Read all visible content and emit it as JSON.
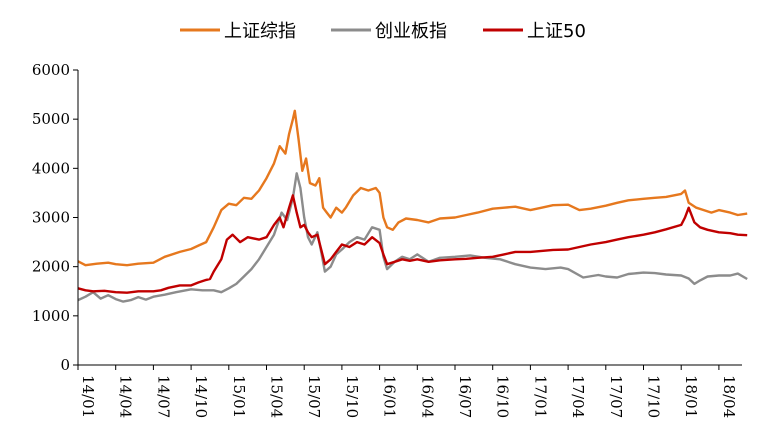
{
  "chart_data": {
    "type": "line",
    "title": "",
    "xlabel": "",
    "ylabel": "",
    "ylim": [
      0,
      6000
    ],
    "yticks": [
      0,
      1000,
      2000,
      3000,
      4000,
      5000,
      6000
    ],
    "x": [
      "14/01",
      "14/04",
      "14/07",
      "14/10",
      "15/01",
      "15/04",
      "15/07",
      "15/10",
      "16/01",
      "16/04",
      "16/07",
      "16/10",
      "17/01",
      "17/04",
      "17/07",
      "17/10",
      "18/01",
      "18/04"
    ],
    "legend_position": "top",
    "series": [
      {
        "name": "上证综指",
        "color": "#E6781E",
        "points": [
          [
            0,
            2110
          ],
          [
            0.2,
            2030
          ],
          [
            0.5,
            2060
          ],
          [
            0.8,
            2080
          ],
          [
            1,
            2050
          ],
          [
            1.3,
            2030
          ],
          [
            1.6,
            2060
          ],
          [
            2,
            2080
          ],
          [
            2.3,
            2200
          ],
          [
            2.7,
            2300
          ],
          [
            3,
            2360
          ],
          [
            3.2,
            2430
          ],
          [
            3.4,
            2500
          ],
          [
            3.6,
            2800
          ],
          [
            3.8,
            3150
          ],
          [
            4,
            3280
          ],
          [
            4.2,
            3250
          ],
          [
            4.4,
            3400
          ],
          [
            4.6,
            3380
          ],
          [
            4.8,
            3550
          ],
          [
            5,
            3800
          ],
          [
            5.2,
            4100
          ],
          [
            5.35,
            4450
          ],
          [
            5.5,
            4300
          ],
          [
            5.6,
            4700
          ],
          [
            5.7,
            5000
          ],
          [
            5.75,
            5170
          ],
          [
            5.85,
            4600
          ],
          [
            5.95,
            3950
          ],
          [
            6.05,
            4200
          ],
          [
            6.15,
            3700
          ],
          [
            6.3,
            3650
          ],
          [
            6.4,
            3800
          ],
          [
            6.5,
            3200
          ],
          [
            6.6,
            3100
          ],
          [
            6.7,
            3000
          ],
          [
            6.85,
            3200
          ],
          [
            7.0,
            3100
          ],
          [
            7.1,
            3200
          ],
          [
            7.3,
            3450
          ],
          [
            7.5,
            3600
          ],
          [
            7.7,
            3550
          ],
          [
            7.9,
            3600
          ],
          [
            8.0,
            3500
          ],
          [
            8.1,
            3000
          ],
          [
            8.2,
            2800
          ],
          [
            8.35,
            2750
          ],
          [
            8.5,
            2900
          ],
          [
            8.7,
            2980
          ],
          [
            9,
            2950
          ],
          [
            9.3,
            2900
          ],
          [
            9.6,
            2980
          ],
          [
            10,
            3000
          ],
          [
            10.3,
            3050
          ],
          [
            10.6,
            3100
          ],
          [
            11,
            3180
          ],
          [
            11.3,
            3200
          ],
          [
            11.6,
            3220
          ],
          [
            12,
            3150
          ],
          [
            12.3,
            3200
          ],
          [
            12.6,
            3250
          ],
          [
            13,
            3260
          ],
          [
            13.3,
            3150
          ],
          [
            13.6,
            3180
          ],
          [
            14,
            3240
          ],
          [
            14.3,
            3300
          ],
          [
            14.6,
            3350
          ],
          [
            15,
            3380
          ],
          [
            15.3,
            3400
          ],
          [
            15.6,
            3420
          ],
          [
            16,
            3480
          ],
          [
            16.1,
            3550
          ],
          [
            16.2,
            3300
          ],
          [
            16.4,
            3200
          ],
          [
            16.6,
            3150
          ],
          [
            16.8,
            3100
          ],
          [
            17,
            3150
          ],
          [
            17.3,
            3100
          ],
          [
            17.5,
            3050
          ],
          [
            17.75,
            3080
          ]
        ]
      },
      {
        "name": "创业板指",
        "color": "#8C8C8C",
        "points": [
          [
            0,
            1320
          ],
          [
            0.2,
            1390
          ],
          [
            0.4,
            1480
          ],
          [
            0.6,
            1350
          ],
          [
            0.8,
            1420
          ],
          [
            1,
            1340
          ],
          [
            1.2,
            1290
          ],
          [
            1.4,
            1320
          ],
          [
            1.6,
            1380
          ],
          [
            1.8,
            1330
          ],
          [
            2,
            1390
          ],
          [
            2.3,
            1430
          ],
          [
            2.6,
            1480
          ],
          [
            3,
            1540
          ],
          [
            3.3,
            1520
          ],
          [
            3.6,
            1520
          ],
          [
            3.8,
            1480
          ],
          [
            4,
            1560
          ],
          [
            4.2,
            1650
          ],
          [
            4.4,
            1800
          ],
          [
            4.6,
            1950
          ],
          [
            4.8,
            2150
          ],
          [
            5,
            2400
          ],
          [
            5.2,
            2650
          ],
          [
            5.4,
            3100
          ],
          [
            5.55,
            2950
          ],
          [
            5.7,
            3400
          ],
          [
            5.8,
            3900
          ],
          [
            5.9,
            3600
          ],
          [
            6.0,
            3000
          ],
          [
            6.1,
            2600
          ],
          [
            6.2,
            2450
          ],
          [
            6.35,
            2700
          ],
          [
            6.45,
            2300
          ],
          [
            6.55,
            1900
          ],
          [
            6.7,
            2000
          ],
          [
            6.85,
            2250
          ],
          [
            7,
            2350
          ],
          [
            7.2,
            2500
          ],
          [
            7.4,
            2600
          ],
          [
            7.6,
            2550
          ],
          [
            7.8,
            2800
          ],
          [
            8,
            2750
          ],
          [
            8.1,
            2200
          ],
          [
            8.2,
            1950
          ],
          [
            8.4,
            2100
          ],
          [
            8.6,
            2200
          ],
          [
            8.8,
            2150
          ],
          [
            9,
            2250
          ],
          [
            9.3,
            2100
          ],
          [
            9.6,
            2180
          ],
          [
            10,
            2200
          ],
          [
            10.4,
            2230
          ],
          [
            10.8,
            2180
          ],
          [
            11.2,
            2150
          ],
          [
            11.6,
            2050
          ],
          [
            12,
            1980
          ],
          [
            12.4,
            1950
          ],
          [
            12.8,
            1980
          ],
          [
            13,
            1950
          ],
          [
            13.4,
            1780
          ],
          [
            13.8,
            1830
          ],
          [
            14,
            1800
          ],
          [
            14.3,
            1780
          ],
          [
            14.6,
            1850
          ],
          [
            15,
            1880
          ],
          [
            15.3,
            1870
          ],
          [
            15.6,
            1840
          ],
          [
            16,
            1820
          ],
          [
            16.2,
            1760
          ],
          [
            16.35,
            1650
          ],
          [
            16.5,
            1720
          ],
          [
            16.7,
            1800
          ],
          [
            17,
            1820
          ],
          [
            17.3,
            1820
          ],
          [
            17.5,
            1860
          ],
          [
            17.75,
            1750
          ]
        ]
      },
      {
        "name": "上证50",
        "color": "#C00000",
        "points": [
          [
            0,
            1560
          ],
          [
            0.2,
            1520
          ],
          [
            0.4,
            1500
          ],
          [
            0.7,
            1510
          ],
          [
            1,
            1480
          ],
          [
            1.3,
            1470
          ],
          [
            1.6,
            1500
          ],
          [
            2,
            1500
          ],
          [
            2.2,
            1520
          ],
          [
            2.4,
            1570
          ],
          [
            2.7,
            1620
          ],
          [
            3,
            1620
          ],
          [
            3.2,
            1680
          ],
          [
            3.4,
            1730
          ],
          [
            3.5,
            1750
          ],
          [
            3.6,
            1900
          ],
          [
            3.8,
            2150
          ],
          [
            3.95,
            2550
          ],
          [
            4.1,
            2650
          ],
          [
            4.3,
            2500
          ],
          [
            4.5,
            2600
          ],
          [
            4.8,
            2550
          ],
          [
            5,
            2600
          ],
          [
            5.2,
            2850
          ],
          [
            5.35,
            3000
          ],
          [
            5.45,
            2800
          ],
          [
            5.6,
            3200
          ],
          [
            5.7,
            3450
          ],
          [
            5.8,
            3100
          ],
          [
            5.9,
            2800
          ],
          [
            6.0,
            2850
          ],
          [
            6.1,
            2700
          ],
          [
            6.2,
            2600
          ],
          [
            6.35,
            2650
          ],
          [
            6.45,
            2350
          ],
          [
            6.55,
            2050
          ],
          [
            6.7,
            2150
          ],
          [
            6.85,
            2300
          ],
          [
            7,
            2450
          ],
          [
            7.2,
            2400
          ],
          [
            7.4,
            2500
          ],
          [
            7.6,
            2450
          ],
          [
            7.8,
            2600
          ],
          [
            8,
            2480
          ],
          [
            8.1,
            2250
          ],
          [
            8.2,
            2050
          ],
          [
            8.4,
            2100
          ],
          [
            8.6,
            2150
          ],
          [
            8.8,
            2120
          ],
          [
            9,
            2150
          ],
          [
            9.3,
            2100
          ],
          [
            9.6,
            2130
          ],
          [
            10,
            2150
          ],
          [
            10.3,
            2160
          ],
          [
            10.6,
            2180
          ],
          [
            11,
            2200
          ],
          [
            11.3,
            2250
          ],
          [
            11.6,
            2300
          ],
          [
            12,
            2300
          ],
          [
            12.3,
            2320
          ],
          [
            12.6,
            2340
          ],
          [
            13,
            2350
          ],
          [
            13.3,
            2400
          ],
          [
            13.6,
            2450
          ],
          [
            14,
            2500
          ],
          [
            14.3,
            2550
          ],
          [
            14.6,
            2600
          ],
          [
            15,
            2650
          ],
          [
            15.3,
            2700
          ],
          [
            15.6,
            2760
          ],
          [
            16,
            2850
          ],
          [
            16.1,
            3000
          ],
          [
            16.2,
            3200
          ],
          [
            16.35,
            2900
          ],
          [
            16.5,
            2800
          ],
          [
            16.7,
            2750
          ],
          [
            17,
            2700
          ],
          [
            17.3,
            2680
          ],
          [
            17.5,
            2650
          ],
          [
            17.75,
            2640
          ]
        ]
      }
    ]
  }
}
